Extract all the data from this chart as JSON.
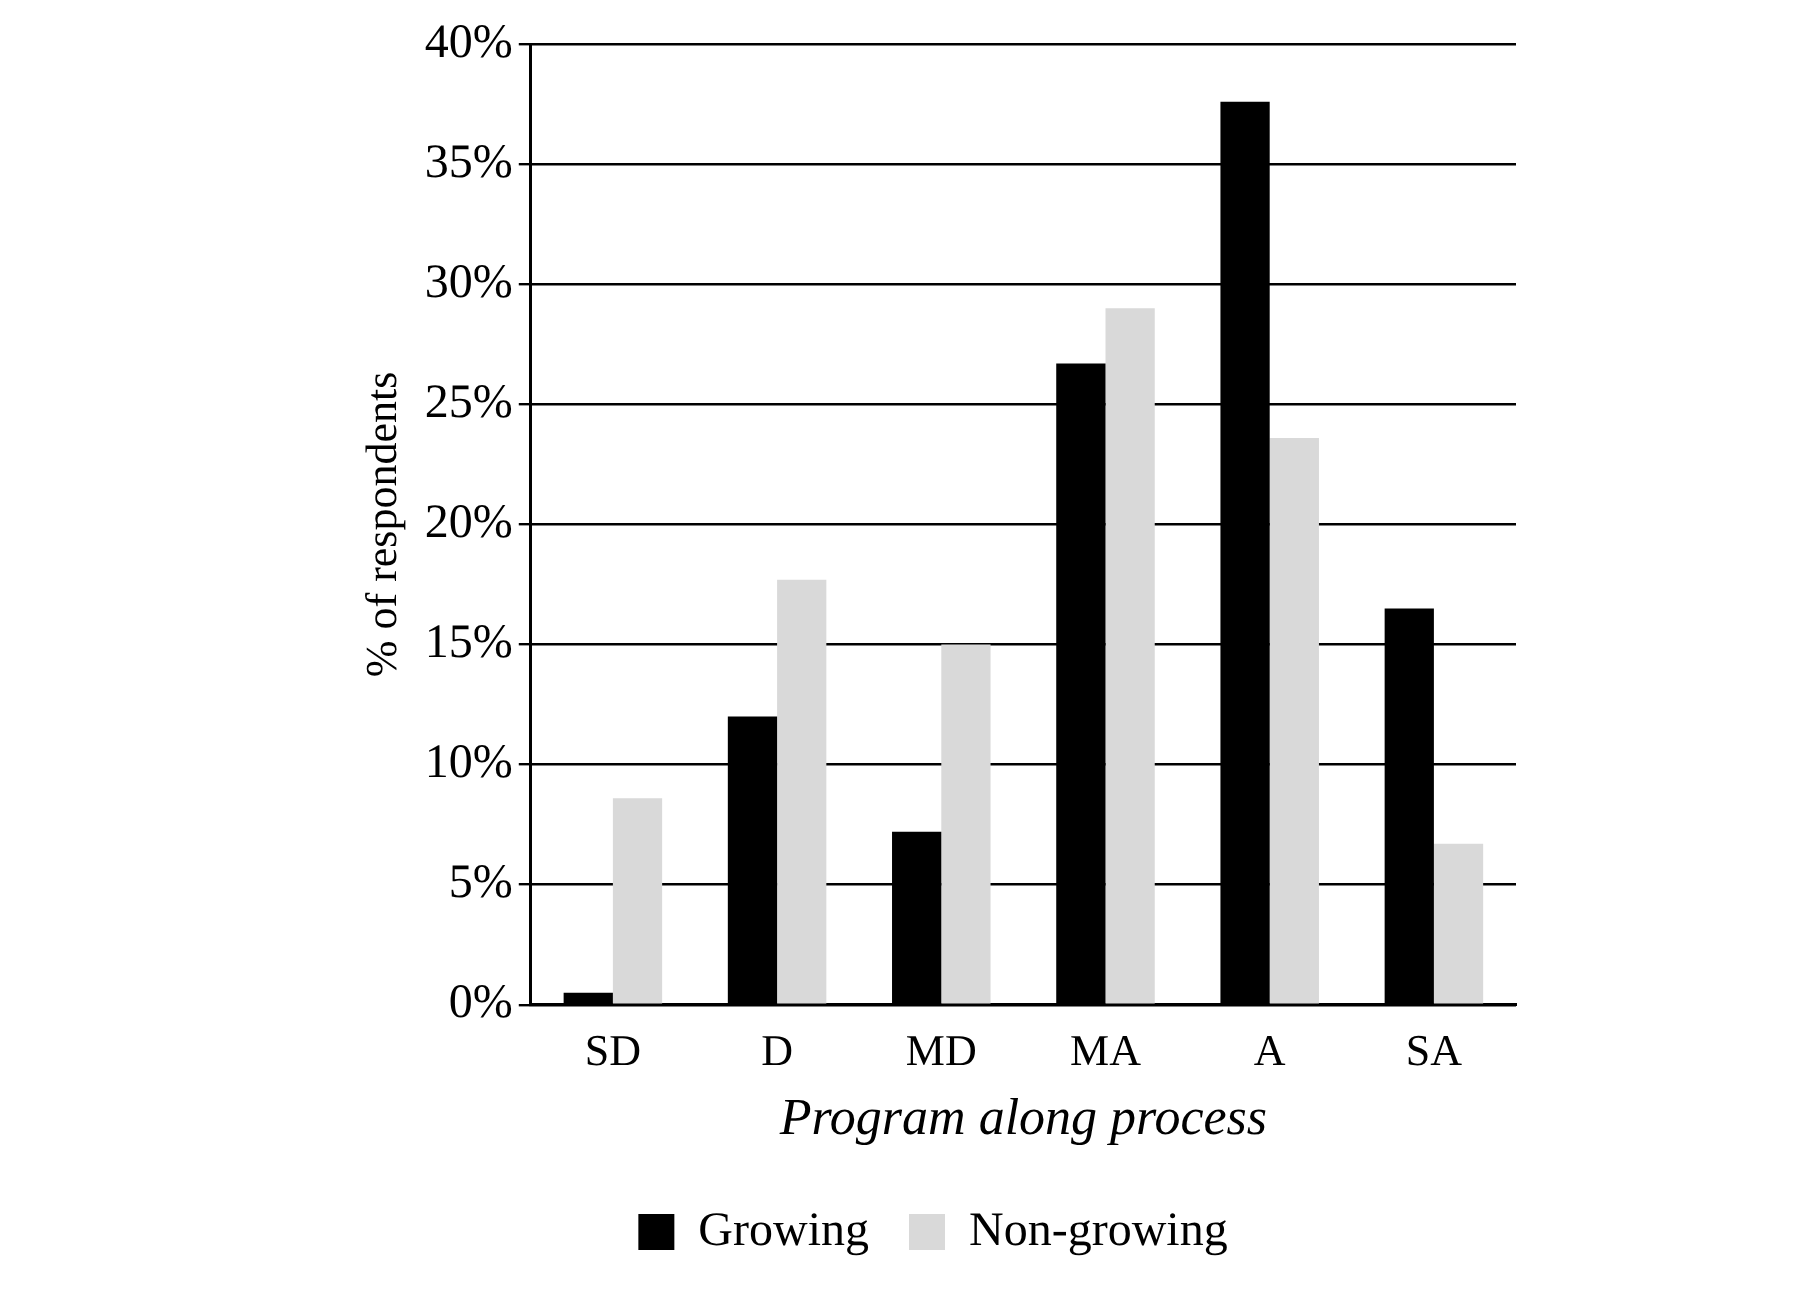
{
  "chart_data": {
    "type": "bar",
    "categories": [
      "SD",
      "D",
      "MD",
      "MA",
      "A",
      "SA"
    ],
    "series": [
      {
        "name": "Growing",
        "color": "#000000",
        "values": [
          0.5,
          12.0,
          7.2,
          26.7,
          37.6,
          16.5
        ]
      },
      {
        "name": "Non-growing",
        "color": "#d9d9d9",
        "values": [
          8.6,
          17.7,
          15.0,
          29.0,
          23.6,
          6.7
        ]
      }
    ],
    "xlabel": "Program along process",
    "ylabel": "% of respondents",
    "ylim": [
      0,
      40
    ],
    "yticks": [
      {
        "value": 0,
        "label": "0%"
      },
      {
        "value": 5,
        "label": "5%"
      },
      {
        "value": 10,
        "label": "10%"
      },
      {
        "value": 15,
        "label": "15%"
      },
      {
        "value": 20,
        "label": "20%"
      },
      {
        "value": 25,
        "label": "25%"
      },
      {
        "value": 30,
        "label": "30%"
      },
      {
        "value": 35,
        "label": "35%"
      },
      {
        "value": 40,
        "label": "40%"
      }
    ],
    "grid": "y",
    "legend": "bottom"
  }
}
